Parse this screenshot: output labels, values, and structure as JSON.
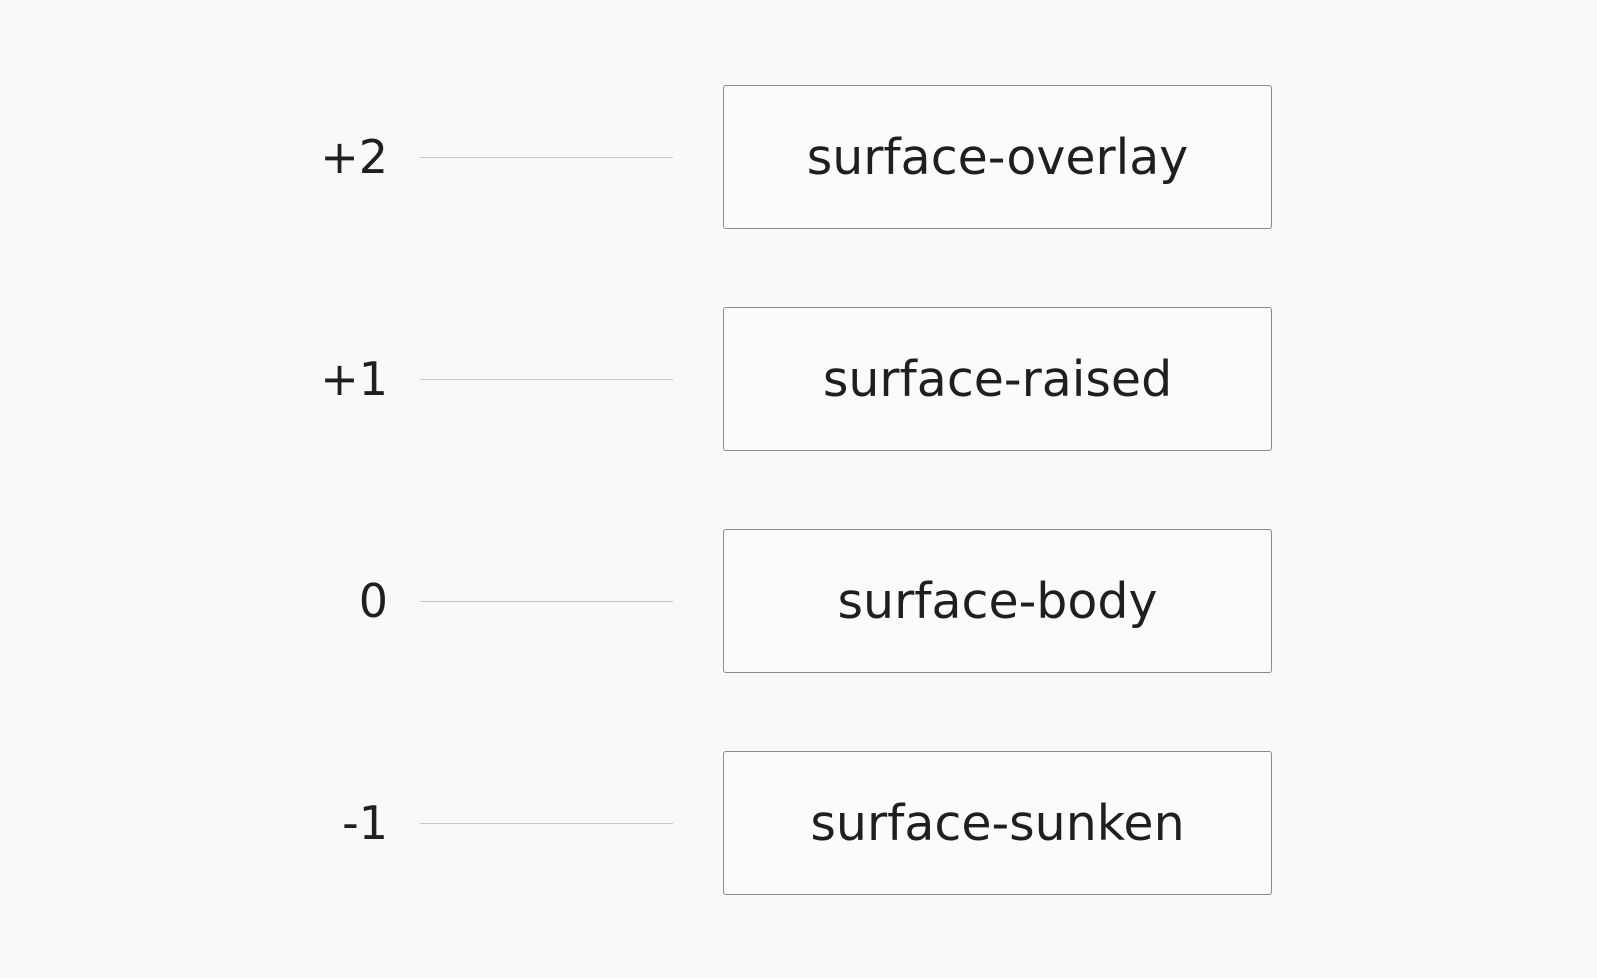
{
  "levels": [
    {
      "level": "+2",
      "surface": "surface-overlay"
    },
    {
      "level": "+1",
      "surface": "surface-raised"
    },
    {
      "level": "0",
      "surface": "surface-body"
    },
    {
      "level": "-1",
      "surface": "surface-sunken"
    }
  ]
}
